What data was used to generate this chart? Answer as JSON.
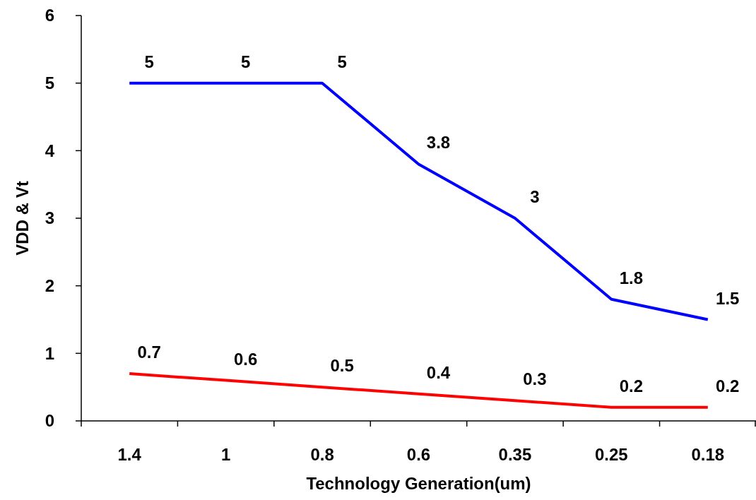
{
  "chart_data": {
    "type": "line",
    "xlabel": "Technology Generation(um)",
    "ylabel": "VDD & Vt",
    "categories": [
      "1.4",
      "1",
      "0.8",
      "0.6",
      "0.35",
      "0.25",
      "0.18"
    ],
    "series": [
      {
        "color": "#0000ff",
        "values": [
          5,
          5,
          5,
          3.8,
          3,
          1.8,
          1.5
        ]
      },
      {
        "color": "#ff0000",
        "values": [
          0.7,
          0.6,
          0.5,
          0.4,
          0.3,
          0.2,
          0.2
        ]
      }
    ],
    "ylim": [
      0,
      6
    ],
    "yticks": [
      0,
      1,
      2,
      3,
      4,
      5,
      6
    ],
    "data_labels": true,
    "grid": false,
    "marker": "none",
    "line_style": "solid"
  }
}
